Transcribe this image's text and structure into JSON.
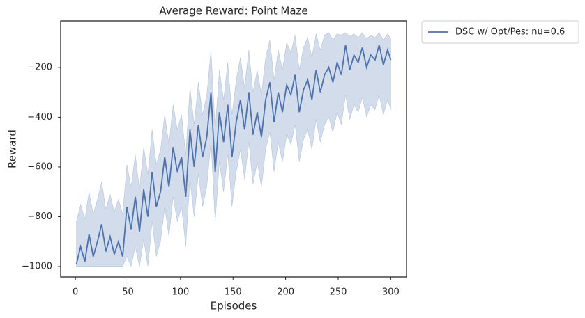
{
  "chart_data": {
    "type": "line",
    "title": "Average Reward: Point Maze",
    "xlabel": "Episodes",
    "ylabel": "Reward",
    "x": [
      1,
      5,
      9,
      13,
      17,
      21,
      25,
      29,
      33,
      37,
      41,
      45,
      49,
      53,
      57,
      61,
      65,
      69,
      73,
      77,
      81,
      85,
      89,
      93,
      97,
      101,
      105,
      109,
      113,
      117,
      121,
      125,
      129,
      133,
      137,
      141,
      145,
      149,
      153,
      157,
      161,
      165,
      169,
      173,
      177,
      181,
      185,
      189,
      193,
      197,
      201,
      205,
      209,
      213,
      217,
      221,
      225,
      229,
      233,
      237,
      241,
      245,
      249,
      253,
      257,
      261,
      265,
      269,
      273,
      277,
      281,
      285,
      289,
      293,
      297,
      300
    ],
    "series": [
      {
        "name": "DSC w/ Opt/Pes: nu=0.6",
        "color": "#4c72b0",
        "band_color": "#4c72b0",
        "values": [
          -990,
          -920,
          -980,
          -870,
          -960,
          -900,
          -830,
          -940,
          -880,
          -950,
          -900,
          -960,
          -760,
          -850,
          -720,
          -860,
          -690,
          -800,
          -620,
          -760,
          -700,
          -560,
          -680,
          -520,
          -620,
          -560,
          -720,
          -450,
          -600,
          -430,
          -560,
          -480,
          -300,
          -620,
          -380,
          -500,
          -350,
          -560,
          -420,
          -330,
          -450,
          -300,
          -470,
          -380,
          -480,
          -330,
          -260,
          -420,
          -300,
          -380,
          -270,
          -310,
          -230,
          -380,
          -290,
          -250,
          -330,
          -210,
          -300,
          -230,
          -200,
          -260,
          -180,
          -230,
          -110,
          -210,
          -150,
          -180,
          -120,
          -200,
          -150,
          -170,
          -110,
          -190,
          -130,
          -170
        ],
        "upper": [
          -820,
          -750,
          -810,
          -700,
          -790,
          -730,
          -660,
          -770,
          -710,
          -780,
          -730,
          -790,
          -590,
          -680,
          -550,
          -690,
          -520,
          -630,
          -450,
          -590,
          -530,
          -390,
          -510,
          -350,
          -450,
          -390,
          -550,
          -280,
          -430,
          -260,
          -390,
          -310,
          -130,
          -450,
          -210,
          -330,
          -180,
          -390,
          -250,
          -160,
          -280,
          -130,
          -300,
          -210,
          -310,
          -160,
          -90,
          -250,
          -130,
          -210,
          -100,
          -140,
          -70,
          -210,
          -120,
          -80,
          -160,
          -65,
          -130,
          -70,
          -60,
          -90,
          -65,
          -70,
          -60,
          -75,
          -65,
          -80,
          -60,
          -85,
          -70,
          -80,
          -60,
          -90,
          -65,
          -85
        ],
        "lower": [
          -1000,
          -1000,
          -1000,
          -1000,
          -1000,
          -1000,
          -1000,
          -1000,
          -1000,
          -1000,
          -1000,
          -1000,
          -960,
          -1000,
          -920,
          -1000,
          -890,
          -1000,
          -820,
          -960,
          -900,
          -760,
          -880,
          -720,
          -820,
          -760,
          -920,
          -650,
          -800,
          -630,
          -760,
          -680,
          -500,
          -820,
          -580,
          -700,
          -550,
          -760,
          -620,
          -530,
          -650,
          -500,
          -670,
          -580,
          -680,
          -530,
          -460,
          -620,
          -500,
          -580,
          -470,
          -510,
          -430,
          -580,
          -490,
          -450,
          -530,
          -410,
          -500,
          -430,
          -400,
          -460,
          -380,
          -430,
          -310,
          -410,
          -350,
          -380,
          -320,
          -400,
          -350,
          -370,
          -310,
          -390,
          -330,
          -370
        ]
      }
    ],
    "xlim": [
      -14,
      315
    ],
    "ylim": [
      -1042,
      -13
    ],
    "xticks": [
      0,
      50,
      100,
      150,
      200,
      250,
      300
    ],
    "yticks": [
      {
        "value": -1000,
        "label": "−1000"
      },
      {
        "value": -800,
        "label": "−800"
      },
      {
        "value": -600,
        "label": "−600"
      },
      {
        "value": -400,
        "label": "−400"
      },
      {
        "value": -200,
        "label": "−200"
      }
    ],
    "grid": false,
    "legend": "outside upper right"
  }
}
